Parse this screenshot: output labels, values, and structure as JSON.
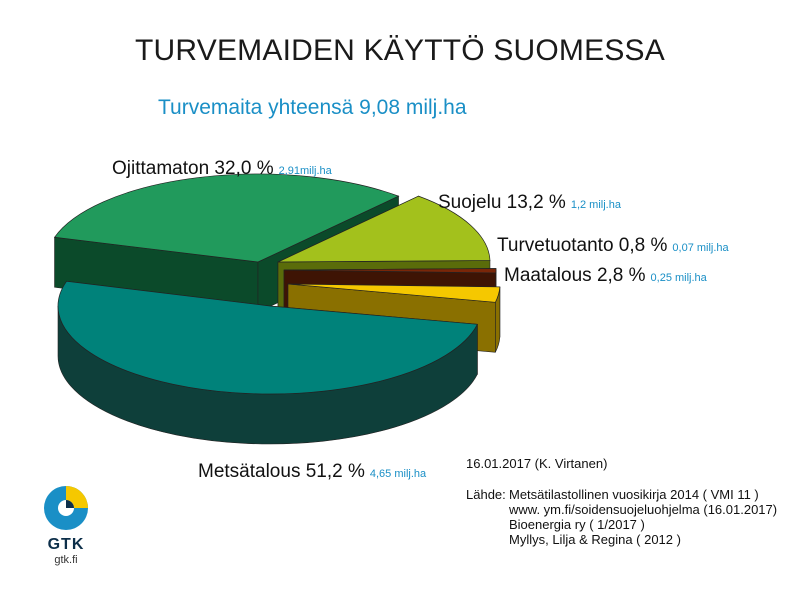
{
  "chart_data": {
    "type": "pie",
    "title": "TURVEMAIDEN KÄYTTÖ SUOMESSA",
    "subtitle": "Turvemaita yhteensä 9,08 milj.ha",
    "categories": [
      "Metsätalous",
      "Ojittamaton",
      "Suojelu",
      "Turvetuotanto",
      "Maatalous"
    ],
    "values": [
      51.2,
      32.0,
      13.2,
      0.8,
      2.8
    ],
    "labels": [
      "Metsätalous 51,2 %",
      "Ojittamaton 32,0 %",
      "Suojelu 13,2 %",
      "Turvetuotanto 0,8 %",
      "Maatalous 2,8 %"
    ],
    "area_labels": [
      "4,65 milj.ha",
      "2,91milj.ha",
      "1,2 milj.ha",
      "0,07 milj.ha",
      "0,25 milj.ha"
    ],
    "colors": [
      "#00827a",
      "#219a5c",
      "#a3c11c",
      "#7a2608",
      "#f5c800"
    ],
    "side_colors": [
      "#0e3f3a",
      "#0b4a2a",
      "#5a6c0a",
      "#3e1404",
      "#8a7000"
    ]
  },
  "footer": {
    "date": "16.01.2017 (K. Virtanen)",
    "sources_label": "Lähde:",
    "sources": [
      "Metsätilastollinen vuosikirja 2014  ( VMI 11 )",
      "www. ym.fi/soidensuojeluohjelma (16.01.2017)",
      "Bioenergia ry ( 1/2017 )",
      "Myllys, Lilja & Regina ( 2012 )"
    ]
  },
  "logo": {
    "name": "GTK",
    "url": "gtk.fi",
    "colors": [
      "#1a8fc6",
      "#f5c800",
      "#0d2f4a"
    ]
  }
}
